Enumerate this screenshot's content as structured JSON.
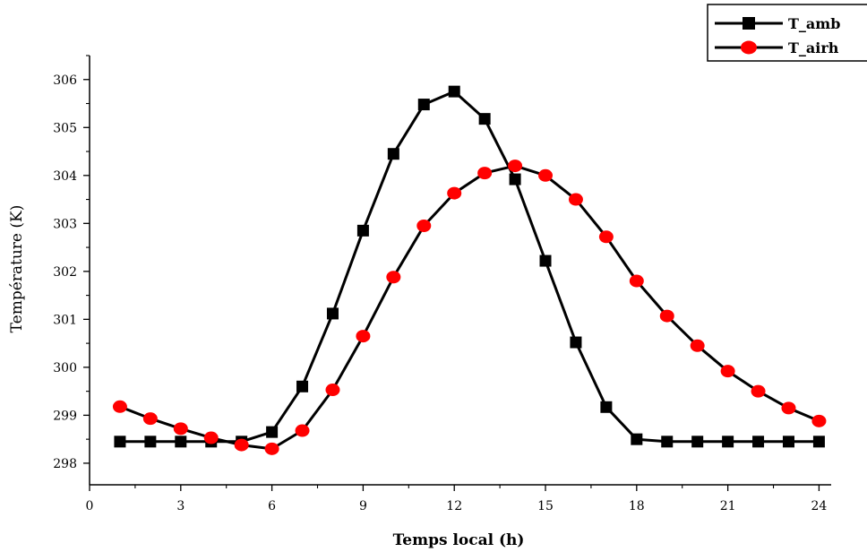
{
  "chart_data": {
    "type": "line",
    "xlabel": "Temps local (h)",
    "ylabel": "Température (K)",
    "xlim": [
      0,
      24.4
    ],
    "ylim": [
      297.55,
      306.5
    ],
    "xticks": [
      0,
      3,
      6,
      9,
      12,
      15,
      18,
      21,
      24
    ],
    "yticks": [
      298,
      299,
      300,
      301,
      302,
      303,
      304,
      305,
      306
    ],
    "grid": false,
    "legend_position": "top-right",
    "x": [
      1,
      2,
      3,
      4,
      5,
      6,
      7,
      8,
      9,
      10,
      11,
      12,
      13,
      14,
      15,
      16,
      17,
      18,
      19,
      20,
      21,
      22,
      23,
      24
    ],
    "series": [
      {
        "name": "T_amb",
        "marker": "square",
        "color": "#000000",
        "values": [
          298.45,
          298.45,
          298.45,
          298.45,
          298.45,
          298.65,
          299.6,
          301.12,
          302.85,
          304.45,
          305.48,
          305.75,
          305.18,
          303.92,
          302.22,
          300.52,
          299.17,
          298.5,
          298.45,
          298.45,
          298.45,
          298.45,
          298.45,
          298.45
        ]
      },
      {
        "name": "T_airh",
        "marker": "circle",
        "color": "#ff0000",
        "values": [
          299.18,
          298.93,
          298.72,
          298.53,
          298.38,
          298.3,
          298.68,
          299.53,
          300.65,
          301.88,
          302.95,
          303.63,
          304.05,
          304.2,
          304.0,
          303.5,
          302.72,
          301.8,
          301.07,
          300.45,
          299.92,
          299.5,
          299.15,
          298.88
        ]
      }
    ]
  }
}
